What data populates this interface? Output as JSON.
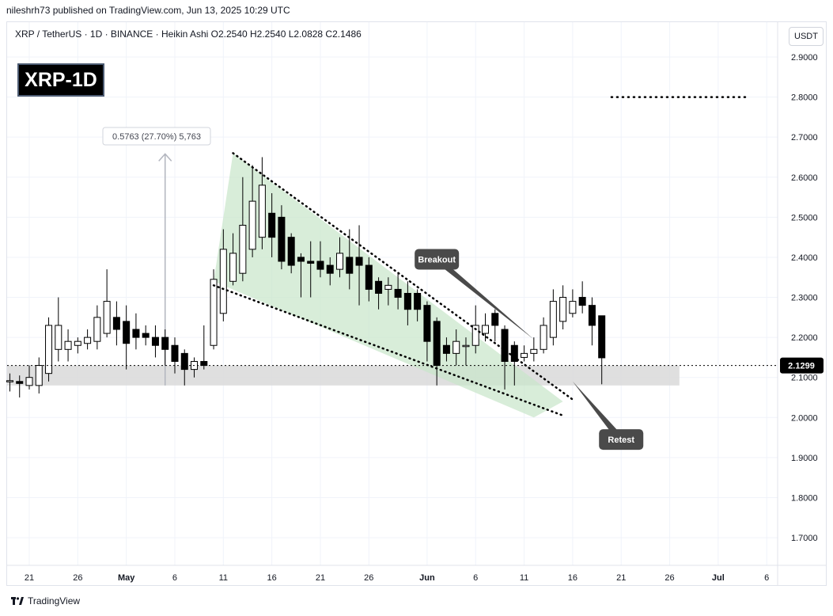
{
  "header": {
    "publisher_line": "nileshrh73 published on TradingView.com, Jun 13, 2025 10:29 UTC"
  },
  "symbol_line": "XRP / TetherUS · 1D · BINANCE · Heikin Ashi  O2.2540  H2.2540  L2.0828  C2.1486",
  "badge": "XRP-1D",
  "currency": "USDT",
  "footer": {
    "brand": "TradingView"
  },
  "colors": {
    "candle": "#000000",
    "wedge_fill": "#c8e6c9",
    "support_zone": "#d9d9d9",
    "label_bg": "#4a4a4a",
    "price_tag": "#000000"
  },
  "chart_data": {
    "type": "candlestick",
    "price_style": "Heikin Ashi",
    "ylim": [
      1.66,
      3.0
    ],
    "yticks": [
      {
        "v": 2.9,
        "label": "2.9000"
      },
      {
        "v": 2.8,
        "label": "2.8000"
      },
      {
        "v": 2.7,
        "label": "2.7000"
      },
      {
        "v": 2.6,
        "label": "2.6000"
      },
      {
        "v": 2.5,
        "label": "2.5000"
      },
      {
        "v": 2.4,
        "label": "2.4000"
      },
      {
        "v": 2.3,
        "label": "2.3000"
      },
      {
        "v": 2.2,
        "label": "2.2000"
      },
      {
        "v": 2.1,
        "label": "2.1000"
      },
      {
        "v": 2.0,
        "label": "2.0000"
      },
      {
        "v": 1.9,
        "label": "1.9000"
      },
      {
        "v": 1.8,
        "label": "1.8000"
      },
      {
        "v": 1.7,
        "label": "1.7000"
      }
    ],
    "xticks": [
      {
        "d": "2025-04-21",
        "label": "21"
      },
      {
        "d": "2025-04-26",
        "label": "26"
      },
      {
        "d": "2025-05-01",
        "label": "May"
      },
      {
        "d": "2025-05-06",
        "label": "6"
      },
      {
        "d": "2025-05-11",
        "label": "11"
      },
      {
        "d": "2025-05-16",
        "label": "16"
      },
      {
        "d": "2025-05-21",
        "label": "21"
      },
      {
        "d": "2025-05-26",
        "label": "26"
      },
      {
        "d": "2025-06-01",
        "label": "Jun"
      },
      {
        "d": "2025-06-06",
        "label": "6"
      },
      {
        "d": "2025-06-11",
        "label": "11"
      },
      {
        "d": "2025-06-16",
        "label": "16"
      },
      {
        "d": "2025-06-21",
        "label": "21"
      },
      {
        "d": "2025-06-26",
        "label": "26"
      },
      {
        "d": "2025-07-01",
        "label": "Jul"
      },
      {
        "d": "2025-07-06",
        "label": "6"
      }
    ],
    "current_price": {
      "value": 2.1299,
      "label": "2.1299"
    },
    "candles": [
      {
        "d": "2025-04-19",
        "o": 2.09,
        "h": 2.11,
        "l": 2.065,
        "c": 2.092
      },
      {
        "d": "2025-04-20",
        "o": 2.09,
        "h": 2.105,
        "l": 2.05,
        "c": 2.085
      },
      {
        "d": "2025-04-21",
        "o": 2.08,
        "h": 2.13,
        "l": 2.07,
        "c": 2.1
      },
      {
        "d": "2025-04-22",
        "o": 2.08,
        "h": 2.15,
        "l": 2.06,
        "c": 2.13
      },
      {
        "d": "2025-04-23",
        "o": 2.11,
        "h": 2.25,
        "l": 2.09,
        "c": 2.23
      },
      {
        "d": "2025-04-24",
        "o": 2.17,
        "h": 2.3,
        "l": 2.14,
        "c": 2.23
      },
      {
        "d": "2025-04-25",
        "o": 2.17,
        "h": 2.22,
        "l": 2.14,
        "c": 2.19
      },
      {
        "d": "2025-04-26",
        "o": 2.18,
        "h": 2.2,
        "l": 2.16,
        "c": 2.19
      },
      {
        "d": "2025-04-27",
        "o": 2.185,
        "h": 2.22,
        "l": 2.17,
        "c": 2.2
      },
      {
        "d": "2025-04-28",
        "o": 2.19,
        "h": 2.28,
        "l": 2.17,
        "c": 2.25
      },
      {
        "d": "2025-04-29",
        "o": 2.21,
        "h": 2.37,
        "l": 2.2,
        "c": 2.29
      },
      {
        "d": "2025-04-30",
        "o": 2.25,
        "h": 2.29,
        "l": 2.18,
        "c": 2.22
      },
      {
        "d": "2025-05-01",
        "o": 2.24,
        "h": 2.28,
        "l": 2.12,
        "c": 2.185
      },
      {
        "d": "2025-05-02",
        "o": 2.22,
        "h": 2.26,
        "l": 2.17,
        "c": 2.2
      },
      {
        "d": "2025-05-03",
        "o": 2.21,
        "h": 2.23,
        "l": 2.18,
        "c": 2.2
      },
      {
        "d": "2025-05-04",
        "o": 2.2,
        "h": 2.23,
        "l": 2.15,
        "c": 2.18
      },
      {
        "d": "2025-05-05",
        "o": 2.2,
        "h": 2.22,
        "l": 2.13,
        "c": 2.17
      },
      {
        "d": "2025-05-06",
        "o": 2.18,
        "h": 2.2,
        "l": 2.11,
        "c": 2.14
      },
      {
        "d": "2025-05-07",
        "o": 2.16,
        "h": 2.17,
        "l": 2.08,
        "c": 2.12
      },
      {
        "d": "2025-05-08",
        "o": 2.12,
        "h": 2.15,
        "l": 2.1,
        "c": 2.14
      },
      {
        "d": "2025-05-09",
        "o": 2.14,
        "h": 2.23,
        "l": 2.12,
        "c": 2.13
      },
      {
        "d": "2025-05-10",
        "o": 2.18,
        "h": 2.37,
        "l": 2.17,
        "c": 2.345
      },
      {
        "d": "2025-05-11",
        "o": 2.26,
        "h": 2.47,
        "l": 2.24,
        "c": 2.42
      },
      {
        "d": "2025-05-12",
        "o": 2.34,
        "h": 2.46,
        "l": 2.33,
        "c": 2.41
      },
      {
        "d": "2025-05-13",
        "o": 2.36,
        "h": 2.6,
        "l": 2.34,
        "c": 2.48
      },
      {
        "d": "2025-05-14",
        "o": 2.42,
        "h": 2.63,
        "l": 2.4,
        "c": 2.54
      },
      {
        "d": "2025-05-15",
        "o": 2.45,
        "h": 2.65,
        "l": 2.42,
        "c": 2.58
      },
      {
        "d": "2025-05-16",
        "o": 2.51,
        "h": 2.56,
        "l": 2.4,
        "c": 2.45
      },
      {
        "d": "2025-05-17",
        "o": 2.5,
        "h": 2.53,
        "l": 2.37,
        "c": 2.39
      },
      {
        "d": "2025-05-18",
        "o": 2.45,
        "h": 2.46,
        "l": 2.36,
        "c": 2.38
      },
      {
        "d": "2025-05-19",
        "o": 2.4,
        "h": 2.41,
        "l": 2.3,
        "c": 2.39
      },
      {
        "d": "2025-05-20",
        "o": 2.39,
        "h": 2.44,
        "l": 2.3,
        "c": 2.385
      },
      {
        "d": "2025-05-21",
        "o": 2.39,
        "h": 2.44,
        "l": 2.35,
        "c": 2.37
      },
      {
        "d": "2025-05-22",
        "o": 2.38,
        "h": 2.4,
        "l": 2.33,
        "c": 2.36
      },
      {
        "d": "2025-05-23",
        "o": 2.37,
        "h": 2.45,
        "l": 2.35,
        "c": 2.41
      },
      {
        "d": "2025-05-24",
        "o": 2.4,
        "h": 2.47,
        "l": 2.32,
        "c": 2.36
      },
      {
        "d": "2025-05-25",
        "o": 2.4,
        "h": 2.48,
        "l": 2.28,
        "c": 2.38
      },
      {
        "d": "2025-05-26",
        "o": 2.38,
        "h": 2.4,
        "l": 2.29,
        "c": 2.32
      },
      {
        "d": "2025-05-27",
        "o": 2.34,
        "h": 2.35,
        "l": 2.27,
        "c": 2.31
      },
      {
        "d": "2025-05-28",
        "o": 2.32,
        "h": 2.35,
        "l": 2.28,
        "c": 2.33
      },
      {
        "d": "2025-05-29",
        "o": 2.32,
        "h": 2.36,
        "l": 2.27,
        "c": 2.3
      },
      {
        "d": "2025-05-30",
        "o": 2.31,
        "h": 2.34,
        "l": 2.23,
        "c": 2.27
      },
      {
        "d": "2025-05-31",
        "o": 2.31,
        "h": 2.32,
        "l": 2.24,
        "c": 2.27
      },
      {
        "d": "2025-06-01",
        "o": 2.28,
        "h": 2.29,
        "l": 2.14,
        "c": 2.19
      },
      {
        "d": "2025-06-02",
        "o": 2.24,
        "h": 2.25,
        "l": 2.08,
        "c": 2.13
      },
      {
        "d": "2025-06-03",
        "o": 2.18,
        "h": 2.2,
        "l": 2.14,
        "c": 2.16
      },
      {
        "d": "2025-06-04",
        "o": 2.16,
        "h": 2.22,
        "l": 2.13,
        "c": 2.19
      },
      {
        "d": "2025-06-05",
        "o": 2.18,
        "h": 2.2,
        "l": 2.13,
        "c": 2.18
      },
      {
        "d": "2025-06-06",
        "o": 2.18,
        "h": 2.28,
        "l": 2.16,
        "c": 2.23
      },
      {
        "d": "2025-06-07",
        "o": 2.21,
        "h": 2.26,
        "l": 2.19,
        "c": 2.23
      },
      {
        "d": "2025-06-08",
        "o": 2.26,
        "h": 2.27,
        "l": 2.19,
        "c": 2.23
      },
      {
        "d": "2025-06-09",
        "o": 2.22,
        "h": 2.23,
        "l": 2.07,
        "c": 2.14
      },
      {
        "d": "2025-06-10",
        "o": 2.18,
        "h": 2.19,
        "l": 2.08,
        "c": 2.14
      },
      {
        "d": "2025-06-11",
        "o": 2.15,
        "h": 2.18,
        "l": 2.14,
        "c": 2.16
      },
      {
        "d": "2025-06-12",
        "o": 2.16,
        "h": 2.2,
        "l": 2.14,
        "c": 2.17
      },
      {
        "d": "2025-06-13",
        "o": 2.17,
        "h": 2.25,
        "l": 2.16,
        "c": 2.23
      },
      {
        "d": "2025-06-14",
        "o": 2.2,
        "h": 2.32,
        "l": 2.18,
        "c": 2.29
      },
      {
        "d": "2025-06-15",
        "o": 2.24,
        "h": 2.33,
        "l": 2.22,
        "c": 2.3
      },
      {
        "d": "2025-06-16",
        "o": 2.26,
        "h": 2.32,
        "l": 2.25,
        "c": 2.29
      },
      {
        "d": "2025-06-17",
        "o": 2.3,
        "h": 2.34,
        "l": 2.26,
        "c": 2.28
      },
      {
        "d": "2025-06-18",
        "o": 2.28,
        "h": 2.3,
        "l": 2.18,
        "c": 2.23
      },
      {
        "d": "2025-06-19",
        "o": 2.254,
        "h": 2.254,
        "l": 2.083,
        "c": 2.149
      }
    ],
    "wedge": {
      "upper_line": [
        {
          "d": "2025-05-12",
          "v": 2.66
        },
        {
          "d": "2025-06-16",
          "v": 2.045
        }
      ],
      "lower_line": [
        {
          "d": "2025-05-10",
          "v": 2.33
        },
        {
          "d": "2025-06-15",
          "v": 2.005
        }
      ],
      "fill_polygon": [
        {
          "d": "2025-05-10",
          "v": 2.34
        },
        {
          "d": "2025-05-12",
          "v": 2.66
        },
        {
          "d": "2025-06-15",
          "v": 2.04
        },
        {
          "d": "2025-06-12",
          "v": 2.0
        }
      ]
    },
    "support_zone": {
      "from": "2025-04-18",
      "to": "2025-06-27",
      "low": 2.08,
      "high": 2.13
    },
    "resistance_line": {
      "from": "2025-06-20",
      "to": "2025-07-04",
      "v": 2.8
    },
    "measure": {
      "d": "2025-05-05",
      "from": 2.08,
      "to": 2.66,
      "label": "0.5763 (27.70%) 5,763"
    },
    "annotations": [
      {
        "text": "Breakout",
        "box_d": "2025-06-02",
        "box_v": 2.395,
        "tip_d": "2025-06-12",
        "tip_v": 2.195
      },
      {
        "text": "Retest",
        "box_d": "2025-06-21",
        "box_v": 1.945,
        "tip_d": "2025-06-16",
        "tip_v": 2.09
      }
    ]
  }
}
